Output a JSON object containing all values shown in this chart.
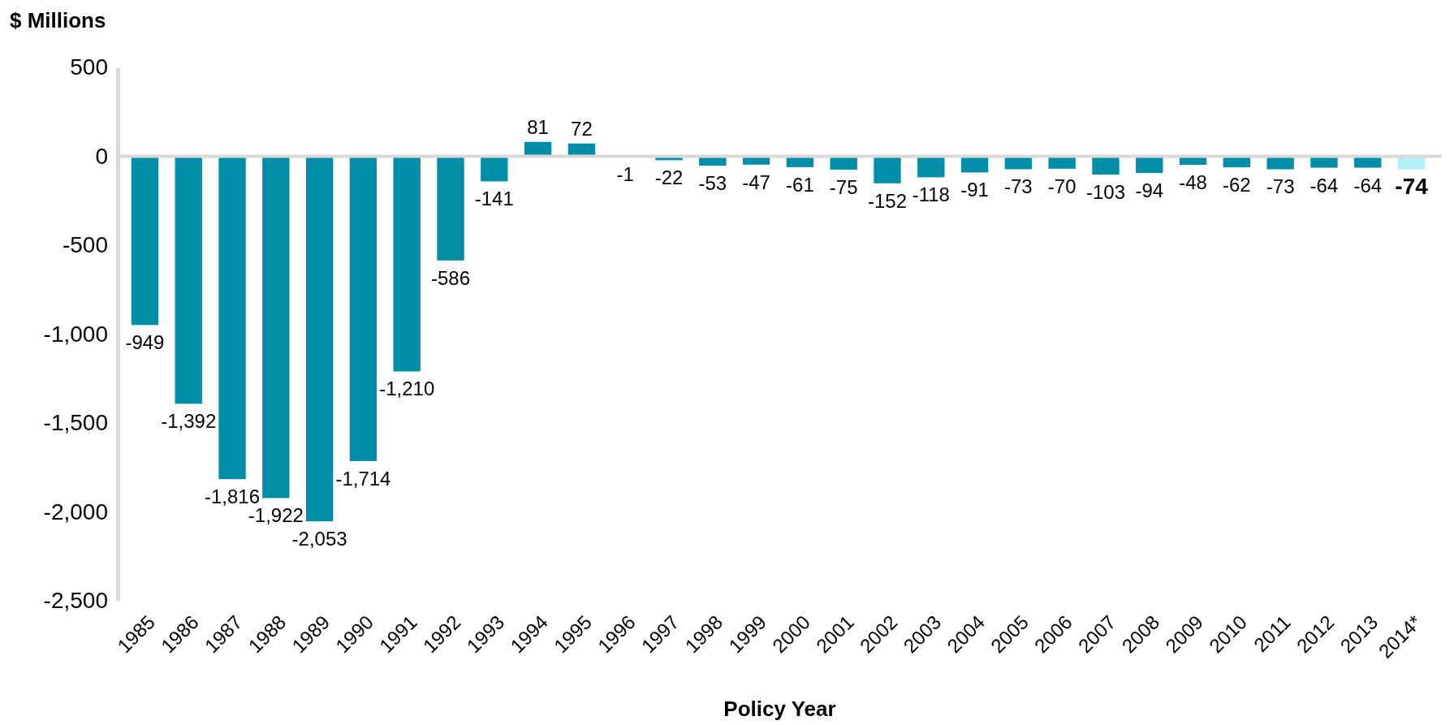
{
  "chart_data": {
    "type": "bar",
    "ylabel": "$ Millions",
    "xlabel": "Policy Year",
    "categories": [
      "1985",
      "1986",
      "1987",
      "1988",
      "1989",
      "1990",
      "1991",
      "1992",
      "1993",
      "1994",
      "1995",
      "1996",
      "1997",
      "1998",
      "1999",
      "2000",
      "2001",
      "2002",
      "2003",
      "2004",
      "2005",
      "2006",
      "2007",
      "2008",
      "2009",
      "2010",
      "2011",
      "2012",
      "2013",
      "2014*"
    ],
    "values": [
      -949,
      -1392,
      -1816,
      -1922,
      -2053,
      -1714,
      -1210,
      -586,
      -141,
      81,
      72,
      -1,
      -22,
      -53,
      -47,
      -61,
      -75,
      -152,
      -118,
      -91,
      -73,
      -70,
      -103,
      -94,
      -48,
      -62,
      -73,
      -64,
      -64,
      -74
    ],
    "colors": [
      "#008da8",
      "#008da8",
      "#008da8",
      "#008da8",
      "#008da8",
      "#008da8",
      "#008da8",
      "#008da8",
      "#008da8",
      "#008da8",
      "#008da8",
      "#008da8",
      "#008da8",
      "#008da8",
      "#008da8",
      "#008da8",
      "#008da8",
      "#008da8",
      "#008da8",
      "#008da8",
      "#008da8",
      "#008da8",
      "#008da8",
      "#008da8",
      "#008da8",
      "#008da8",
      "#008da8",
      "#008da8",
      "#008da8",
      "#b3f0f8"
    ],
    "ylim": [
      -2500,
      500
    ],
    "yticks": [
      {
        "value": 500,
        "label": "500"
      },
      {
        "value": 0,
        "label": "0"
      },
      {
        "value": -500,
        "label": "-500"
      },
      {
        "value": -1000,
        "label": "-1,000"
      },
      {
        "value": -1500,
        "label": "-1,500"
      },
      {
        "value": -2000,
        "label": "-2,000"
      },
      {
        "value": -2500,
        "label": "-2,500"
      }
    ],
    "value_labels": [
      "-949",
      "-1,392",
      "-1,816",
      "-1,922",
      "-2,053",
      "-1,714",
      "-1,210",
      "-586",
      "-141",
      "81",
      "72",
      "-1",
      "-22",
      "-53",
      "-47",
      "-61",
      "-75",
      "-152",
      "-118",
      "-91",
      "-73",
      "-70",
      "-103",
      "-94",
      "-48",
      "-62",
      "-73",
      "-64",
      "-64",
      "-74"
    ]
  }
}
